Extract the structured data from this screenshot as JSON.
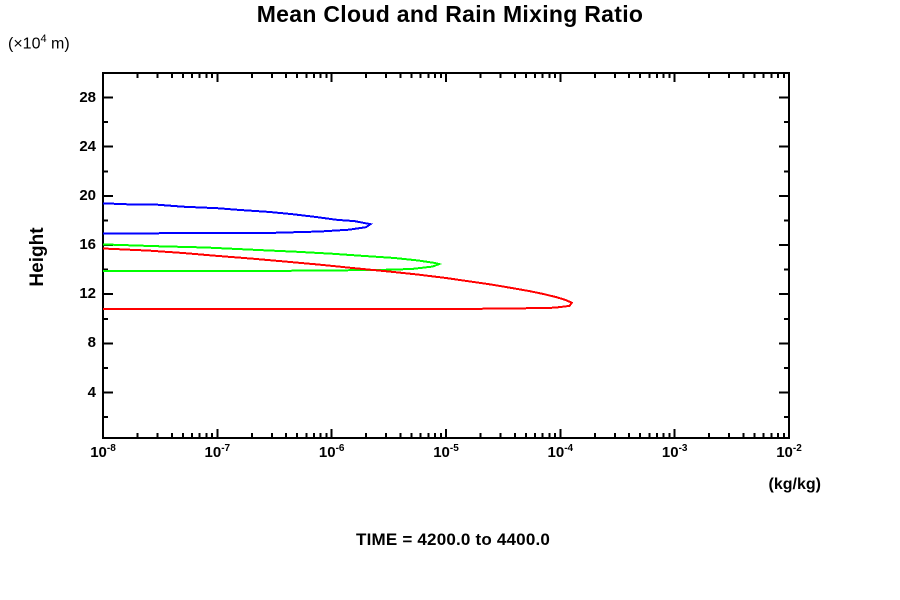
{
  "figure": {
    "background": "#ffffff",
    "frame_color": "#000000",
    "text_color": "#000000"
  },
  "chart_data": {
    "type": "line",
    "title": "Mean Cloud and Rain Mixing Ratio",
    "caption": "TIME = 4200.0 to 4400.0",
    "xlabel": "(kg/kg)",
    "ylabel": "Height",
    "y_units": {
      "prefix": "(×10",
      "exponent": "4",
      "suffix": " m)"
    },
    "x_scale": "log",
    "xlim": [
      1e-08,
      0.01
    ],
    "ylim": [
      0.3,
      30
    ],
    "grid": false,
    "legend": "none",
    "x_ticks": [
      {
        "exponent": -8,
        "base": "10",
        "exp_text": "-8"
      },
      {
        "exponent": -7,
        "base": "10",
        "exp_text": "-7"
      },
      {
        "exponent": -6,
        "base": "10",
        "exp_text": "-6"
      },
      {
        "exponent": -5,
        "base": "10",
        "exp_text": "-5"
      },
      {
        "exponent": -4,
        "base": "10",
        "exp_text": "-4"
      },
      {
        "exponent": -3,
        "base": "10",
        "exp_text": "-3"
      },
      {
        "exponent": -2,
        "base": "10",
        "exp_text": "-2"
      }
    ],
    "x_minor_mantissas": [
      2,
      3,
      4,
      5,
      6,
      7,
      8,
      9
    ],
    "y_major_ticks": [
      28,
      24,
      20,
      16,
      12,
      8,
      4
    ],
    "y_minor_ticks": [
      26,
      22,
      18,
      14,
      10,
      6,
      2
    ],
    "points_format": "[log10(mixing ratio kg/kg), height ×10^4 m]",
    "series": [
      {
        "name": "series-blue",
        "color": "#0000ff",
        "peak": {
          "value": 2.2e-06,
          "height": 17.7
        },
        "points": [
          [
            -8.0,
            19.4
          ],
          [
            -7.7,
            19.28
          ],
          [
            -7.55,
            19.3
          ],
          [
            -7.3,
            19.12
          ],
          [
            -7.0,
            19.0
          ],
          [
            -6.8,
            18.85
          ],
          [
            -6.55,
            18.7
          ],
          [
            -6.35,
            18.52
          ],
          [
            -6.15,
            18.3
          ],
          [
            -5.95,
            18.05
          ],
          [
            -5.8,
            17.95
          ],
          [
            -5.72,
            17.8
          ],
          [
            -5.66,
            17.7
          ],
          [
            -5.7,
            17.45
          ],
          [
            -5.85,
            17.25
          ],
          [
            -6.1,
            17.1
          ],
          [
            -6.5,
            17.0
          ],
          [
            -7.0,
            16.97
          ],
          [
            -8.0,
            16.95
          ]
        ]
      },
      {
        "name": "series-green",
        "color": "#00ff00",
        "peak": {
          "value": 8.7e-06,
          "height": 14.45
        },
        "points": [
          [
            -8.0,
            16.05
          ],
          [
            -7.5,
            15.9
          ],
          [
            -7.1,
            15.8
          ],
          [
            -6.7,
            15.62
          ],
          [
            -6.3,
            15.45
          ],
          [
            -6.0,
            15.3
          ],
          [
            -5.7,
            15.1
          ],
          [
            -5.45,
            14.95
          ],
          [
            -5.25,
            14.75
          ],
          [
            -5.1,
            14.55
          ],
          [
            -5.06,
            14.45
          ],
          [
            -5.12,
            14.25
          ],
          [
            -5.3,
            14.05
          ],
          [
            -5.6,
            13.97
          ],
          [
            -6.5,
            13.9
          ],
          [
            -7.2,
            13.89
          ],
          [
            -8.0,
            13.88
          ]
        ]
      },
      {
        "name": "series-red",
        "color": "#ff0000",
        "peak": {
          "value": 0.000125,
          "height": 11.25
        },
        "points": [
          [
            -8.0,
            15.72
          ],
          [
            -7.6,
            15.55
          ],
          [
            -7.3,
            15.35
          ],
          [
            -7.0,
            15.12
          ],
          [
            -6.7,
            14.9
          ],
          [
            -6.4,
            14.65
          ],
          [
            -6.1,
            14.4
          ],
          [
            -5.8,
            14.12
          ],
          [
            -5.5,
            13.85
          ],
          [
            -5.25,
            13.6
          ],
          [
            -5.0,
            13.32
          ],
          [
            -4.8,
            13.05
          ],
          [
            -4.6,
            12.78
          ],
          [
            -4.42,
            12.5
          ],
          [
            -4.27,
            12.25
          ],
          [
            -4.14,
            12.0
          ],
          [
            -4.03,
            11.75
          ],
          [
            -3.95,
            11.52
          ],
          [
            -3.9,
            11.3
          ],
          [
            -3.92,
            11.05
          ],
          [
            -4.05,
            10.9
          ],
          [
            -4.5,
            10.82
          ],
          [
            -5.5,
            10.8
          ],
          [
            -8.0,
            10.8
          ]
        ]
      }
    ]
  }
}
